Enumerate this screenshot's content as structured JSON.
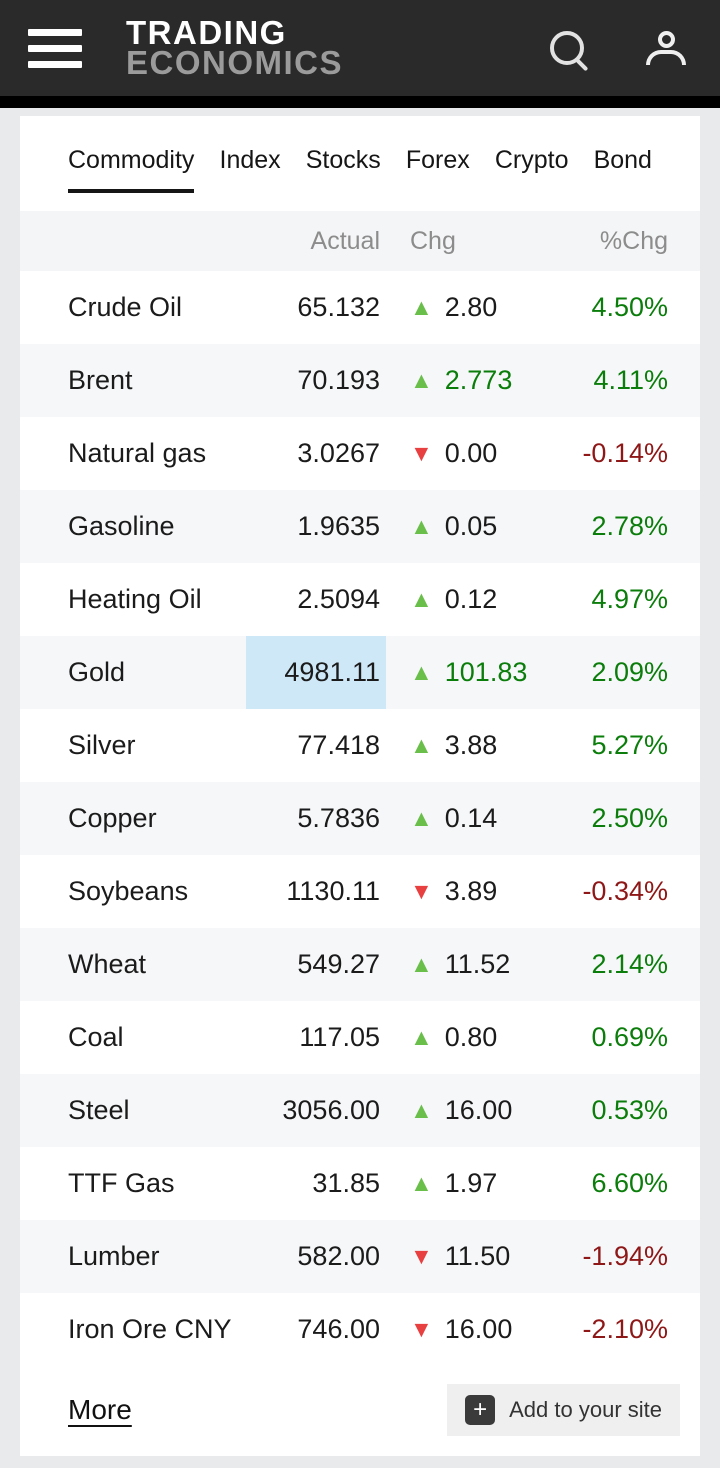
{
  "colors": {
    "page_bg": "#e9eaeb",
    "header_bg": "#2a2a2a",
    "green_text": "#0b7d0b",
    "red_text": "#8e1717",
    "triangle_up": "#6abf4b",
    "triangle_down": "#e84040",
    "highlight": "#cfe8f8"
  },
  "header": {
    "logo_line1": "TRADING",
    "logo_line2": "ECONOMICS",
    "icons": [
      "hamburger-icon",
      "search-icon",
      "user-icon"
    ]
  },
  "tabs": [
    {
      "label": "Commodity",
      "active": true
    },
    {
      "label": "Index",
      "active": false
    },
    {
      "label": "Stocks",
      "active": false
    },
    {
      "label": "Forex",
      "active": false
    },
    {
      "label": "Crypto",
      "active": false
    },
    {
      "label": "Bond",
      "active": false
    }
  ],
  "table": {
    "header": {
      "actual": "Actual",
      "chg": "Chg",
      "pct": "%Chg"
    },
    "rows": [
      {
        "name": "Crude Oil",
        "actual": "65.132",
        "dir": "up",
        "chg": "2.80",
        "chg_green": false,
        "pct": "4.50%",
        "highlight": false
      },
      {
        "name": "Brent",
        "actual": "70.193",
        "dir": "up",
        "chg": "2.773",
        "chg_green": true,
        "pct": "4.11%",
        "highlight": false
      },
      {
        "name": "Natural gas",
        "actual": "3.0267",
        "dir": "down",
        "chg": "0.00",
        "chg_green": false,
        "pct": "-0.14%",
        "highlight": false
      },
      {
        "name": "Gasoline",
        "actual": "1.9635",
        "dir": "up",
        "chg": "0.05",
        "chg_green": false,
        "pct": "2.78%",
        "highlight": false
      },
      {
        "name": "Heating Oil",
        "actual": "2.5094",
        "dir": "up",
        "chg": "0.12",
        "chg_green": false,
        "pct": "4.97%",
        "highlight": false
      },
      {
        "name": "Gold",
        "actual": "4981.11",
        "dir": "up",
        "chg": "101.83",
        "chg_green": true,
        "pct": "2.09%",
        "highlight": true
      },
      {
        "name": "Silver",
        "actual": "77.418",
        "dir": "up",
        "chg": "3.88",
        "chg_green": false,
        "pct": "5.27%",
        "highlight": false
      },
      {
        "name": "Copper",
        "actual": "5.7836",
        "dir": "up",
        "chg": "0.14",
        "chg_green": false,
        "pct": "2.50%",
        "highlight": false
      },
      {
        "name": "Soybeans",
        "actual": "1130.11",
        "dir": "down",
        "chg": "3.89",
        "chg_green": false,
        "pct": "-0.34%",
        "highlight": false
      },
      {
        "name": "Wheat",
        "actual": "549.27",
        "dir": "up",
        "chg": "11.52",
        "chg_green": false,
        "pct": "2.14%",
        "highlight": false
      },
      {
        "name": "Coal",
        "actual": "117.05",
        "dir": "up",
        "chg": "0.80",
        "chg_green": false,
        "pct": "0.69%",
        "highlight": false
      },
      {
        "name": "Steel",
        "actual": "3056.00",
        "dir": "up",
        "chg": "16.00",
        "chg_green": false,
        "pct": "0.53%",
        "highlight": false
      },
      {
        "name": "TTF Gas",
        "actual": "31.85",
        "dir": "up",
        "chg": "1.97",
        "chg_green": false,
        "pct": "6.60%",
        "highlight": false
      },
      {
        "name": "Lumber",
        "actual": "582.00",
        "dir": "down",
        "chg": "11.50",
        "chg_green": false,
        "pct": "-1.94%",
        "highlight": false
      },
      {
        "name": "Iron Ore CNY",
        "actual": "746.00",
        "dir": "down",
        "chg": "16.00",
        "chg_green": false,
        "pct": "-2.10%",
        "highlight": false
      }
    ]
  },
  "footer": {
    "more_label": "More",
    "add_to_site_label": "Add to your site",
    "plus_icon": "+"
  }
}
